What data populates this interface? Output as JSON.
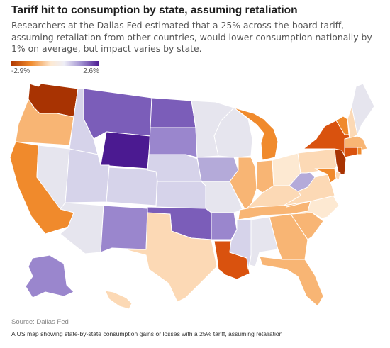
{
  "title": "Tariff hit to consumption by state, assuming retaliation",
  "subtitle": "Researchers at the Dallas Fed estimated that a 25% across-the-board tariff, assuming retaliation from other countries, would lower consumption nationally by 1% on average, but impact varies by state.",
  "legend": {
    "min_label": "-2.9%",
    "max_label": "2.6%",
    "min_value": -2.9,
    "max_value": 2.6
  },
  "source": "Source: Dallas Fed",
  "caption": "A US map showing state-by-state consumption gains or losses with a 25% tariff, assuming retaliation",
  "colors": {
    "deep_orange": "#a83302",
    "dark_orange": "#d9520e",
    "orange": "#f08a2c",
    "light_orange": "#f8b574",
    "pale_orange": "#fcd9b5",
    "cream": "#fde9d2",
    "neutral": "#e6e5ee",
    "light_purple": "#d6d3ea",
    "lavender": "#b4aad9",
    "purple": "#9a86cd",
    "med_purple": "#7b5db9",
    "deep_purple": "#4b1a91"
  },
  "chart_data": {
    "type": "choropleth",
    "unit": "% change in consumption",
    "scale_range": [
      -2.9,
      2.6
    ],
    "states": [
      {
        "id": "WA",
        "level": "deep_orange"
      },
      {
        "id": "OR",
        "level": "light_orange"
      },
      {
        "id": "CA",
        "level": "orange"
      },
      {
        "id": "NV",
        "level": "neutral"
      },
      {
        "id": "ID",
        "level": "light_purple"
      },
      {
        "id": "MT",
        "level": "med_purple"
      },
      {
        "id": "WY",
        "level": "deep_purple"
      },
      {
        "id": "UT",
        "level": "light_purple"
      },
      {
        "id": "AZ",
        "level": "neutral"
      },
      {
        "id": "CO",
        "level": "light_purple"
      },
      {
        "id": "NM",
        "level": "purple"
      },
      {
        "id": "ND",
        "level": "med_purple"
      },
      {
        "id": "SD",
        "level": "purple"
      },
      {
        "id": "NE",
        "level": "light_purple"
      },
      {
        "id": "KS",
        "level": "light_purple"
      },
      {
        "id": "OK",
        "level": "med_purple"
      },
      {
        "id": "TX",
        "level": "pale_orange"
      },
      {
        "id": "MN",
        "level": "neutral"
      },
      {
        "id": "IA",
        "level": "lavender"
      },
      {
        "id": "MO",
        "level": "neutral"
      },
      {
        "id": "AR",
        "level": "purple"
      },
      {
        "id": "LA",
        "level": "dark_orange"
      },
      {
        "id": "WI",
        "level": "neutral"
      },
      {
        "id": "IL",
        "level": "light_orange"
      },
      {
        "id": "MI",
        "level": "orange"
      },
      {
        "id": "IN",
        "level": "light_orange"
      },
      {
        "id": "OH",
        "level": "cream"
      },
      {
        "id": "KY",
        "level": "pale_orange"
      },
      {
        "id": "TN",
        "level": "light_orange"
      },
      {
        "id": "MS",
        "level": "light_purple"
      },
      {
        "id": "AL",
        "level": "neutral"
      },
      {
        "id": "GA",
        "level": "light_orange"
      },
      {
        "id": "FL",
        "level": "light_orange"
      },
      {
        "id": "SC",
        "level": "light_orange"
      },
      {
        "id": "NC",
        "level": "cream"
      },
      {
        "id": "VA",
        "level": "pale_orange"
      },
      {
        "id": "WV",
        "level": "lavender"
      },
      {
        "id": "PA",
        "level": "pale_orange"
      },
      {
        "id": "NY",
        "level": "dark_orange"
      },
      {
        "id": "VT",
        "level": "orange"
      },
      {
        "id": "NH",
        "level": "pale_orange"
      },
      {
        "id": "ME",
        "level": "neutral"
      },
      {
        "id": "MA",
        "level": "light_orange"
      },
      {
        "id": "RI",
        "level": "orange"
      },
      {
        "id": "CT",
        "level": "dark_orange"
      },
      {
        "id": "NJ",
        "level": "deep_orange"
      },
      {
        "id": "DE",
        "level": "pale_orange"
      },
      {
        "id": "MD",
        "level": "orange"
      },
      {
        "id": "AK",
        "level": "purple"
      },
      {
        "id": "HI",
        "level": "pale_orange"
      }
    ]
  }
}
